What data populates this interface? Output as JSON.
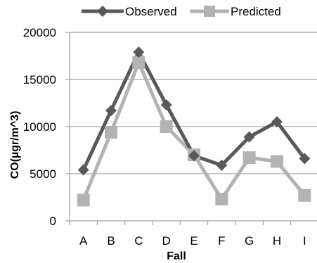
{
  "chart_data": {
    "type": "line",
    "categories": [
      "A",
      "B",
      "C",
      "D",
      "E",
      "F",
      "G",
      "H",
      "I"
    ],
    "series": [
      {
        "name": "Observed",
        "values": [
          5400,
          11700,
          17900,
          12300,
          6900,
          5900,
          8900,
          10500,
          6600
        ],
        "color": "#595959",
        "marker": "diamond"
      },
      {
        "name": "Predicted",
        "values": [
          2200,
          9400,
          16800,
          10000,
          7000,
          2300,
          6700,
          6300,
          2700
        ],
        "color": "#b3b3b3",
        "marker": "square"
      }
    ],
    "xlabel": "Fall",
    "ylabel": "CO(µgr/m^3)",
    "ylim": [
      0,
      20000
    ],
    "yticks": [
      "0",
      "5000",
      "10000",
      "15000",
      "20000"
    ],
    "grid": true,
    "legend_position": "top"
  }
}
